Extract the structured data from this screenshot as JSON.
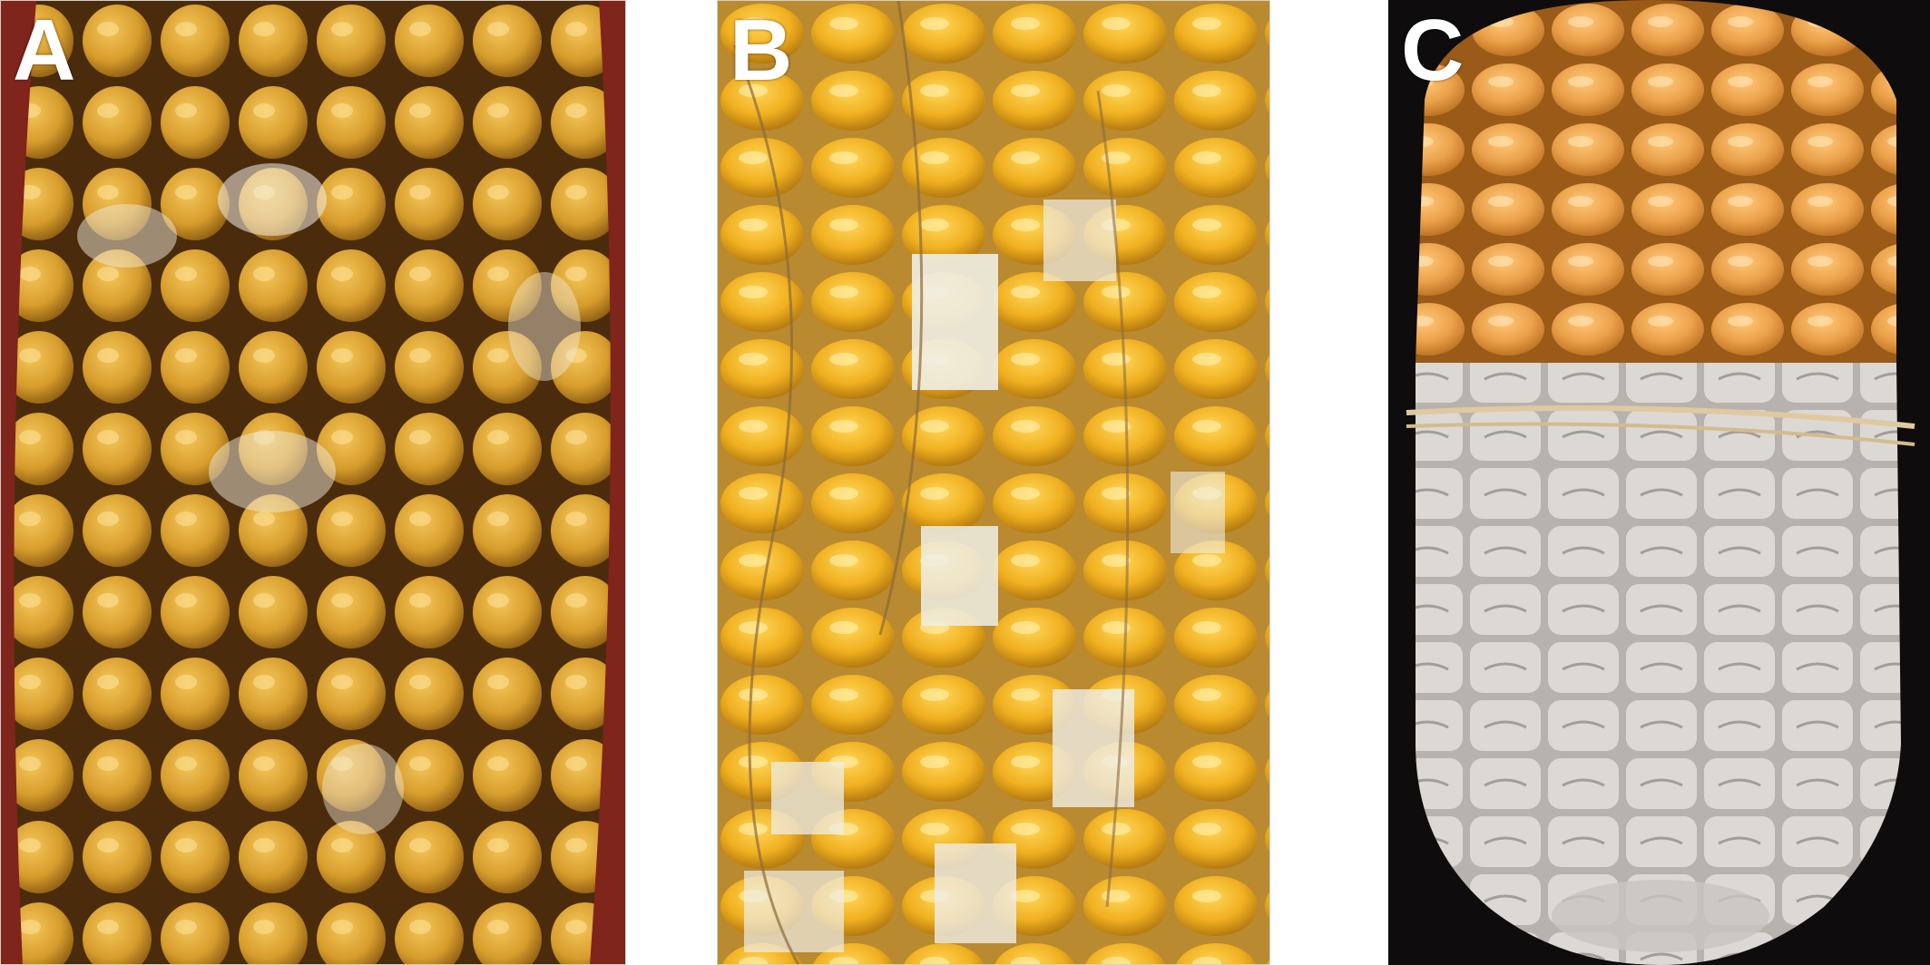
{
  "panels": [
    {
      "label": "A",
      "subject": "maize-ear-kernels",
      "bg_color": "#8a2a1e",
      "kernel_color": "#d9a030"
    },
    {
      "label": "B",
      "subject": "maize-ear-kernels-white-mold",
      "bg_color": "#e9c36a",
      "kernel_color": "#f0b020",
      "mold_color": "#efeee6"
    },
    {
      "label": "C",
      "subject": "maize-ear-kernels-white-mold",
      "bg_color": "#0e0c0c",
      "kernel_color": "#eba14a",
      "mold_color": "#d9d6d2"
    }
  ]
}
